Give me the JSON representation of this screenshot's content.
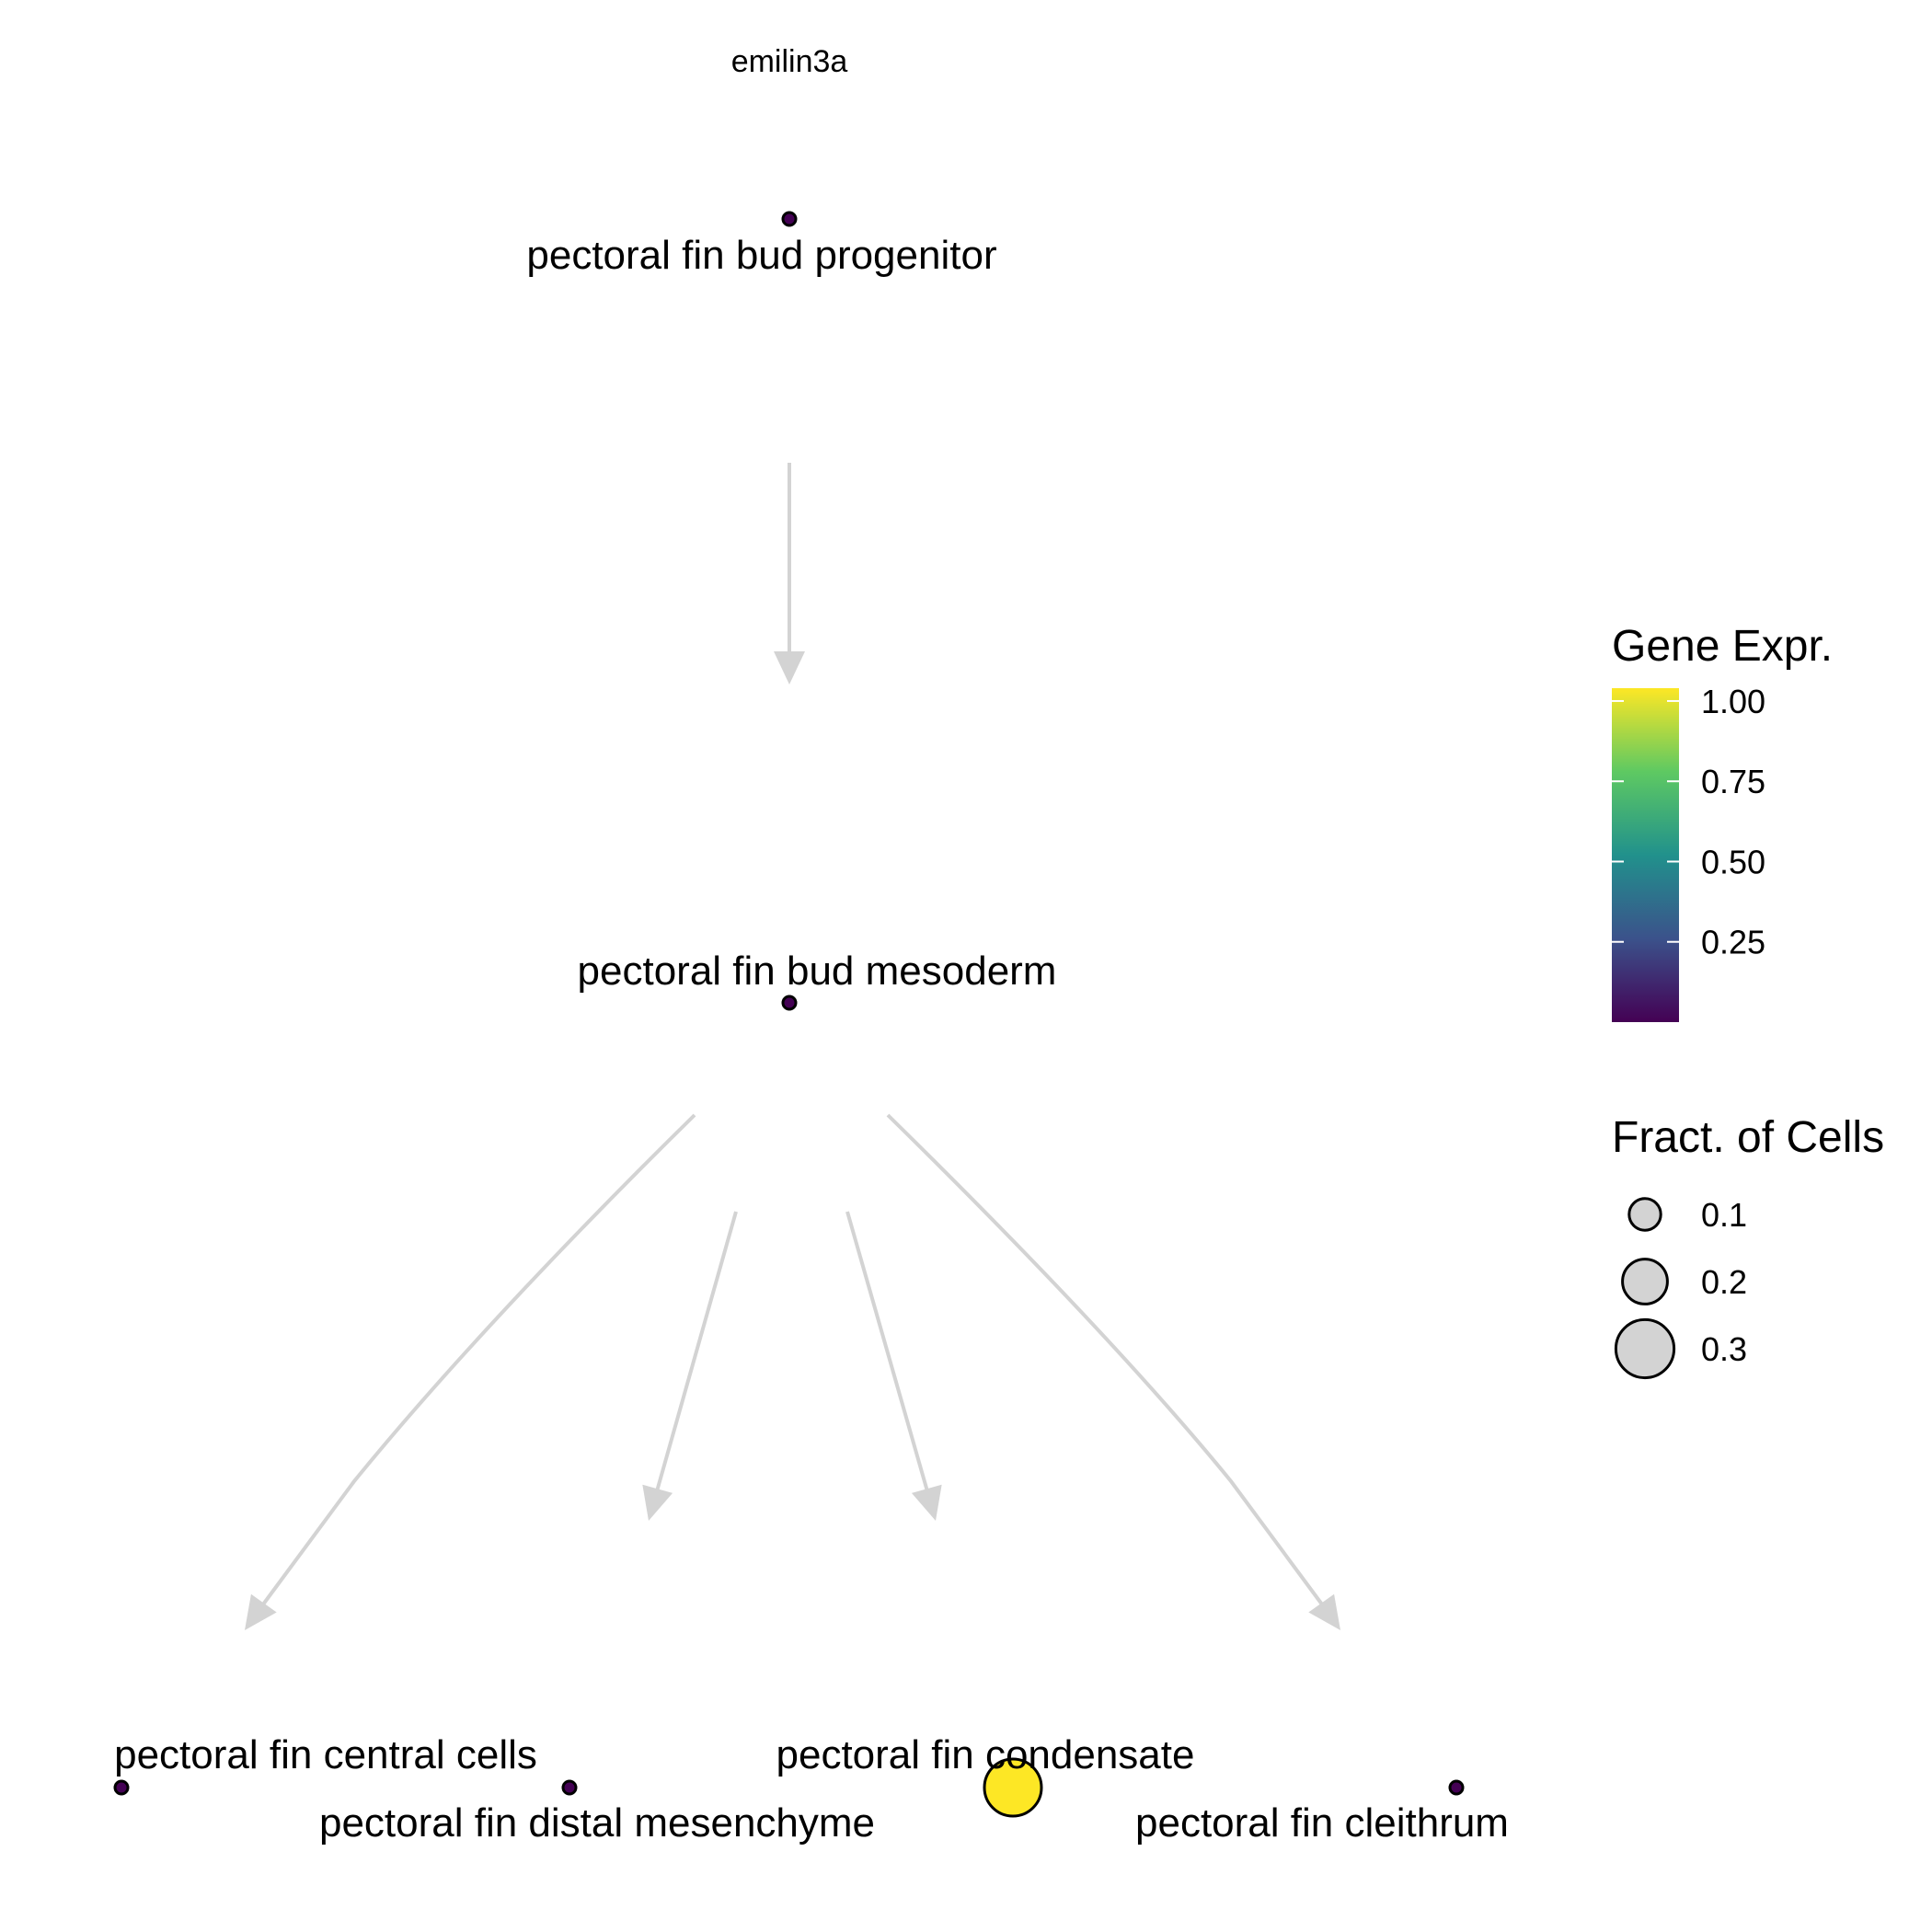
{
  "title": "emilin3a",
  "nodes": [
    {
      "id": "progenitor",
      "label": "pectoral fin bud progenitor",
      "expr": 0.0,
      "fraction": 0.0
    },
    {
      "id": "mesoderm",
      "label": "pectoral fin bud mesoderm",
      "expr": 0.0,
      "fraction": 0.0
    },
    {
      "id": "central",
      "label": "pectoral fin central cells",
      "expr": 0.0,
      "fraction": 0.0
    },
    {
      "id": "distal",
      "label": "pectoral fin distal mesenchyme",
      "expr": 0.0,
      "fraction": 0.0
    },
    {
      "id": "condensate",
      "label": "pectoral fin condensate",
      "expr": 1.0,
      "fraction": 0.3
    },
    {
      "id": "cleithrum",
      "label": "pectoral fin cleithrum",
      "expr": 0.0,
      "fraction": 0.0
    }
  ],
  "edges": [
    {
      "from": "progenitor",
      "to": "mesoderm"
    },
    {
      "from": "mesoderm",
      "to": "central"
    },
    {
      "from": "mesoderm",
      "to": "distal"
    },
    {
      "from": "mesoderm",
      "to": "condensate"
    },
    {
      "from": "mesoderm",
      "to": "cleithrum"
    }
  ],
  "legend": {
    "color": {
      "title": "Gene Expr.",
      "ticks": [
        "1.00",
        "0.75",
        "0.50",
        "0.25"
      ],
      "tick_values": [
        1.0,
        0.75,
        0.5,
        0.25
      ],
      "min": 0.0,
      "max": 1.0,
      "palette": [
        "#440154",
        "#3b528b",
        "#21918c",
        "#5ec962",
        "#fde725"
      ]
    },
    "size": {
      "title": "Fract. of Cells",
      "ticks": [
        "0.1",
        "0.2",
        "0.3"
      ],
      "tick_values": [
        0.1,
        0.2,
        0.3
      ]
    }
  },
  "colors": {
    "edge": "#d3d3d3",
    "legend_point_fill": "#d3d3d3",
    "point_stroke": "#000000"
  }
}
